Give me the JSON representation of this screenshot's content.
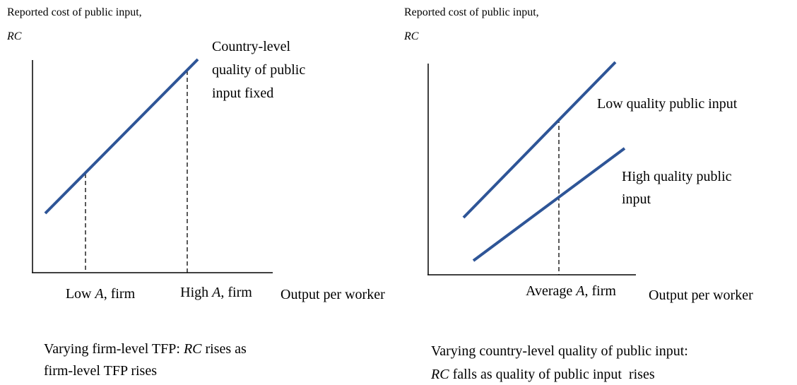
{
  "left": {
    "y_label": [
      "Reported cost of public input,",
      "RC"
    ],
    "curve_label": [
      "Country-level",
      "quality of public",
      "input fixed"
    ],
    "x_ticks": [
      [
        "Low ",
        "A",
        ", firm"
      ],
      [
        "High ",
        "A",
        ", firm"
      ]
    ],
    "x_label": "Output per worker",
    "caption": [
      [
        "Varying firm-level TFP: ",
        "RC",
        " rises as"
      ],
      [
        "firm-level TFP rises"
      ]
    ]
  },
  "right": {
    "y_label": [
      "Reported cost of public input,",
      "RC"
    ],
    "low_label": "Low quality public input",
    "high_label": [
      "High quality public",
      "input"
    ],
    "x_ticks": [
      [
        "Average ",
        "A",
        ", firm"
      ]
    ],
    "x_label": "Output per worker",
    "caption": [
      [
        "Varying country-level quality of public input:"
      ],
      [
        "RC",
        " falls as quality of public input  rises"
      ]
    ]
  }
}
